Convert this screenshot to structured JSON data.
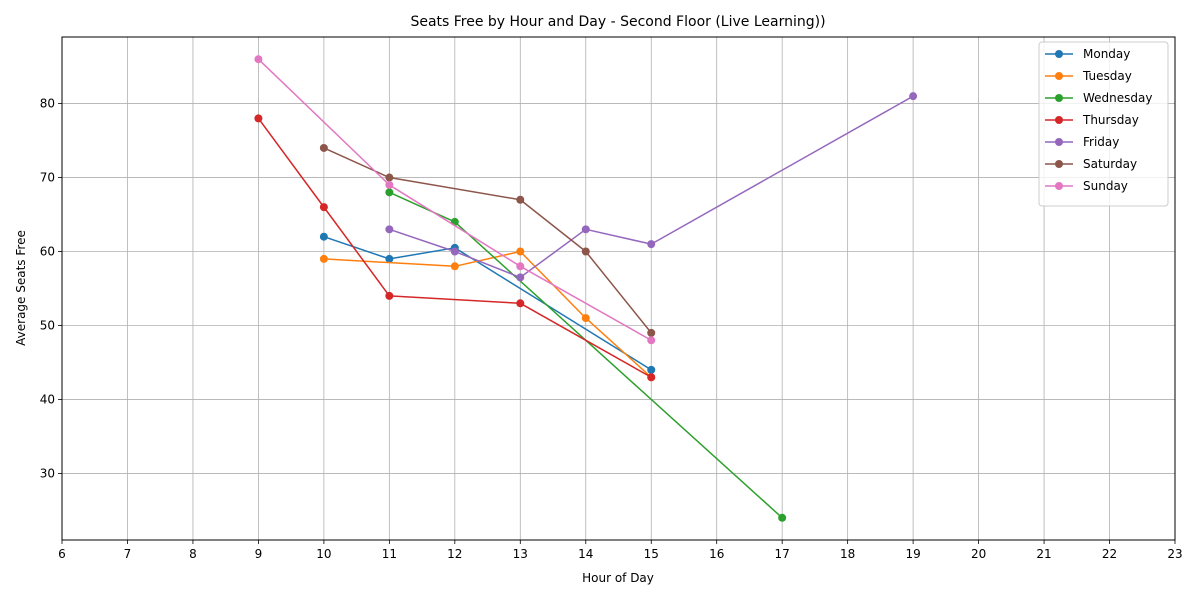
{
  "chart_data": {
    "type": "line",
    "title": "Seats Free by Hour and Day - Second Floor (Live Learning))",
    "xlabel": "Hour of Day",
    "ylabel": "Average Seats Free",
    "xlim": [
      6,
      23
    ],
    "ylim": [
      21,
      89
    ],
    "xticks": [
      6,
      7,
      8,
      9,
      10,
      11,
      12,
      13,
      14,
      15,
      16,
      17,
      18,
      19,
      20,
      21,
      22,
      23
    ],
    "yticks": [
      30,
      40,
      50,
      60,
      70,
      80
    ],
    "grid": true,
    "legend_position": "top-right",
    "series": [
      {
        "name": "Monday",
        "color": "#1f77b4",
        "x": [
          10,
          11,
          12,
          15
        ],
        "y": [
          62,
          59,
          60.5,
          44
        ]
      },
      {
        "name": "Tuesday",
        "color": "#ff7f0e",
        "x": [
          10,
          12,
          13,
          14,
          15
        ],
        "y": [
          59,
          58,
          60,
          51,
          43
        ]
      },
      {
        "name": "Wednesday",
        "color": "#2ca02c",
        "x": [
          11,
          12,
          17
        ],
        "y": [
          68,
          64,
          24
        ]
      },
      {
        "name": "Thursday",
        "color": "#d62728",
        "x": [
          9,
          10,
          11,
          13,
          15
        ],
        "y": [
          78,
          66,
          54,
          53,
          43
        ]
      },
      {
        "name": "Friday",
        "color": "#9467bd",
        "x": [
          11,
          12,
          13,
          14,
          15,
          19
        ],
        "y": [
          63,
          60,
          56.5,
          63,
          61,
          81
        ]
      },
      {
        "name": "Saturday",
        "color": "#8c564b",
        "x": [
          10,
          11,
          13,
          14,
          15
        ],
        "y": [
          74,
          70,
          67,
          60,
          49
        ]
      },
      {
        "name": "Sunday",
        "color": "#e377c2",
        "x": [
          9,
          11,
          13,
          15
        ],
        "y": [
          86,
          69,
          58,
          48
        ]
      }
    ]
  }
}
